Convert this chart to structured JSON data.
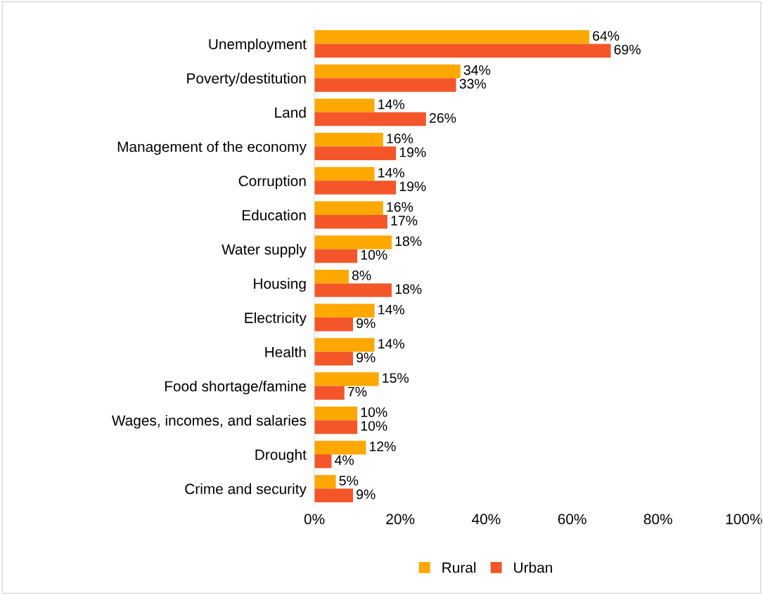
{
  "chart_data": {
    "type": "bar",
    "orientation": "horizontal",
    "categories": [
      "Unemployment",
      "Poverty/destitution",
      "Land",
      "Management of the economy",
      "Corruption",
      "Education",
      "Water supply",
      "Housing",
      "Electricity",
      "Health",
      "Food shortage/famine",
      "Wages, incomes, and salaries",
      "Drought",
      "Crime and security"
    ],
    "series": [
      {
        "name": "Rural",
        "color": "#ffa800",
        "values": [
          64,
          34,
          14,
          16,
          14,
          16,
          18,
          8,
          14,
          14,
          15,
          10,
          12,
          5
        ],
        "value_labels": [
          "64%",
          "34%",
          "14%",
          "16%",
          "14%",
          "16%",
          "18%",
          "8%",
          "14%",
          "14%",
          "15%",
          "10%",
          "12%",
          "5%"
        ]
      },
      {
        "name": "Urban",
        "color": "#f4562a",
        "values": [
          69,
          33,
          26,
          19,
          19,
          17,
          10,
          18,
          9,
          9,
          7,
          10,
          4,
          9
        ],
        "value_labels": [
          "69%",
          "33%",
          "26%",
          "19%",
          "19%",
          "17%",
          "10%",
          "18%",
          "9%",
          "9%",
          "7%",
          "10%",
          "4%",
          "9%"
        ]
      }
    ],
    "xlim": [
      0,
      100
    ],
    "xticks": [
      {
        "value": 0,
        "label": "0%"
      },
      {
        "value": 20,
        "label": "20%"
      },
      {
        "value": 40,
        "label": "40%"
      },
      {
        "value": 60,
        "label": "60%"
      },
      {
        "value": 80,
        "label": "80%"
      },
      {
        "value": 100,
        "label": "100%"
      }
    ],
    "legend": "bottom",
    "grid": false
  }
}
